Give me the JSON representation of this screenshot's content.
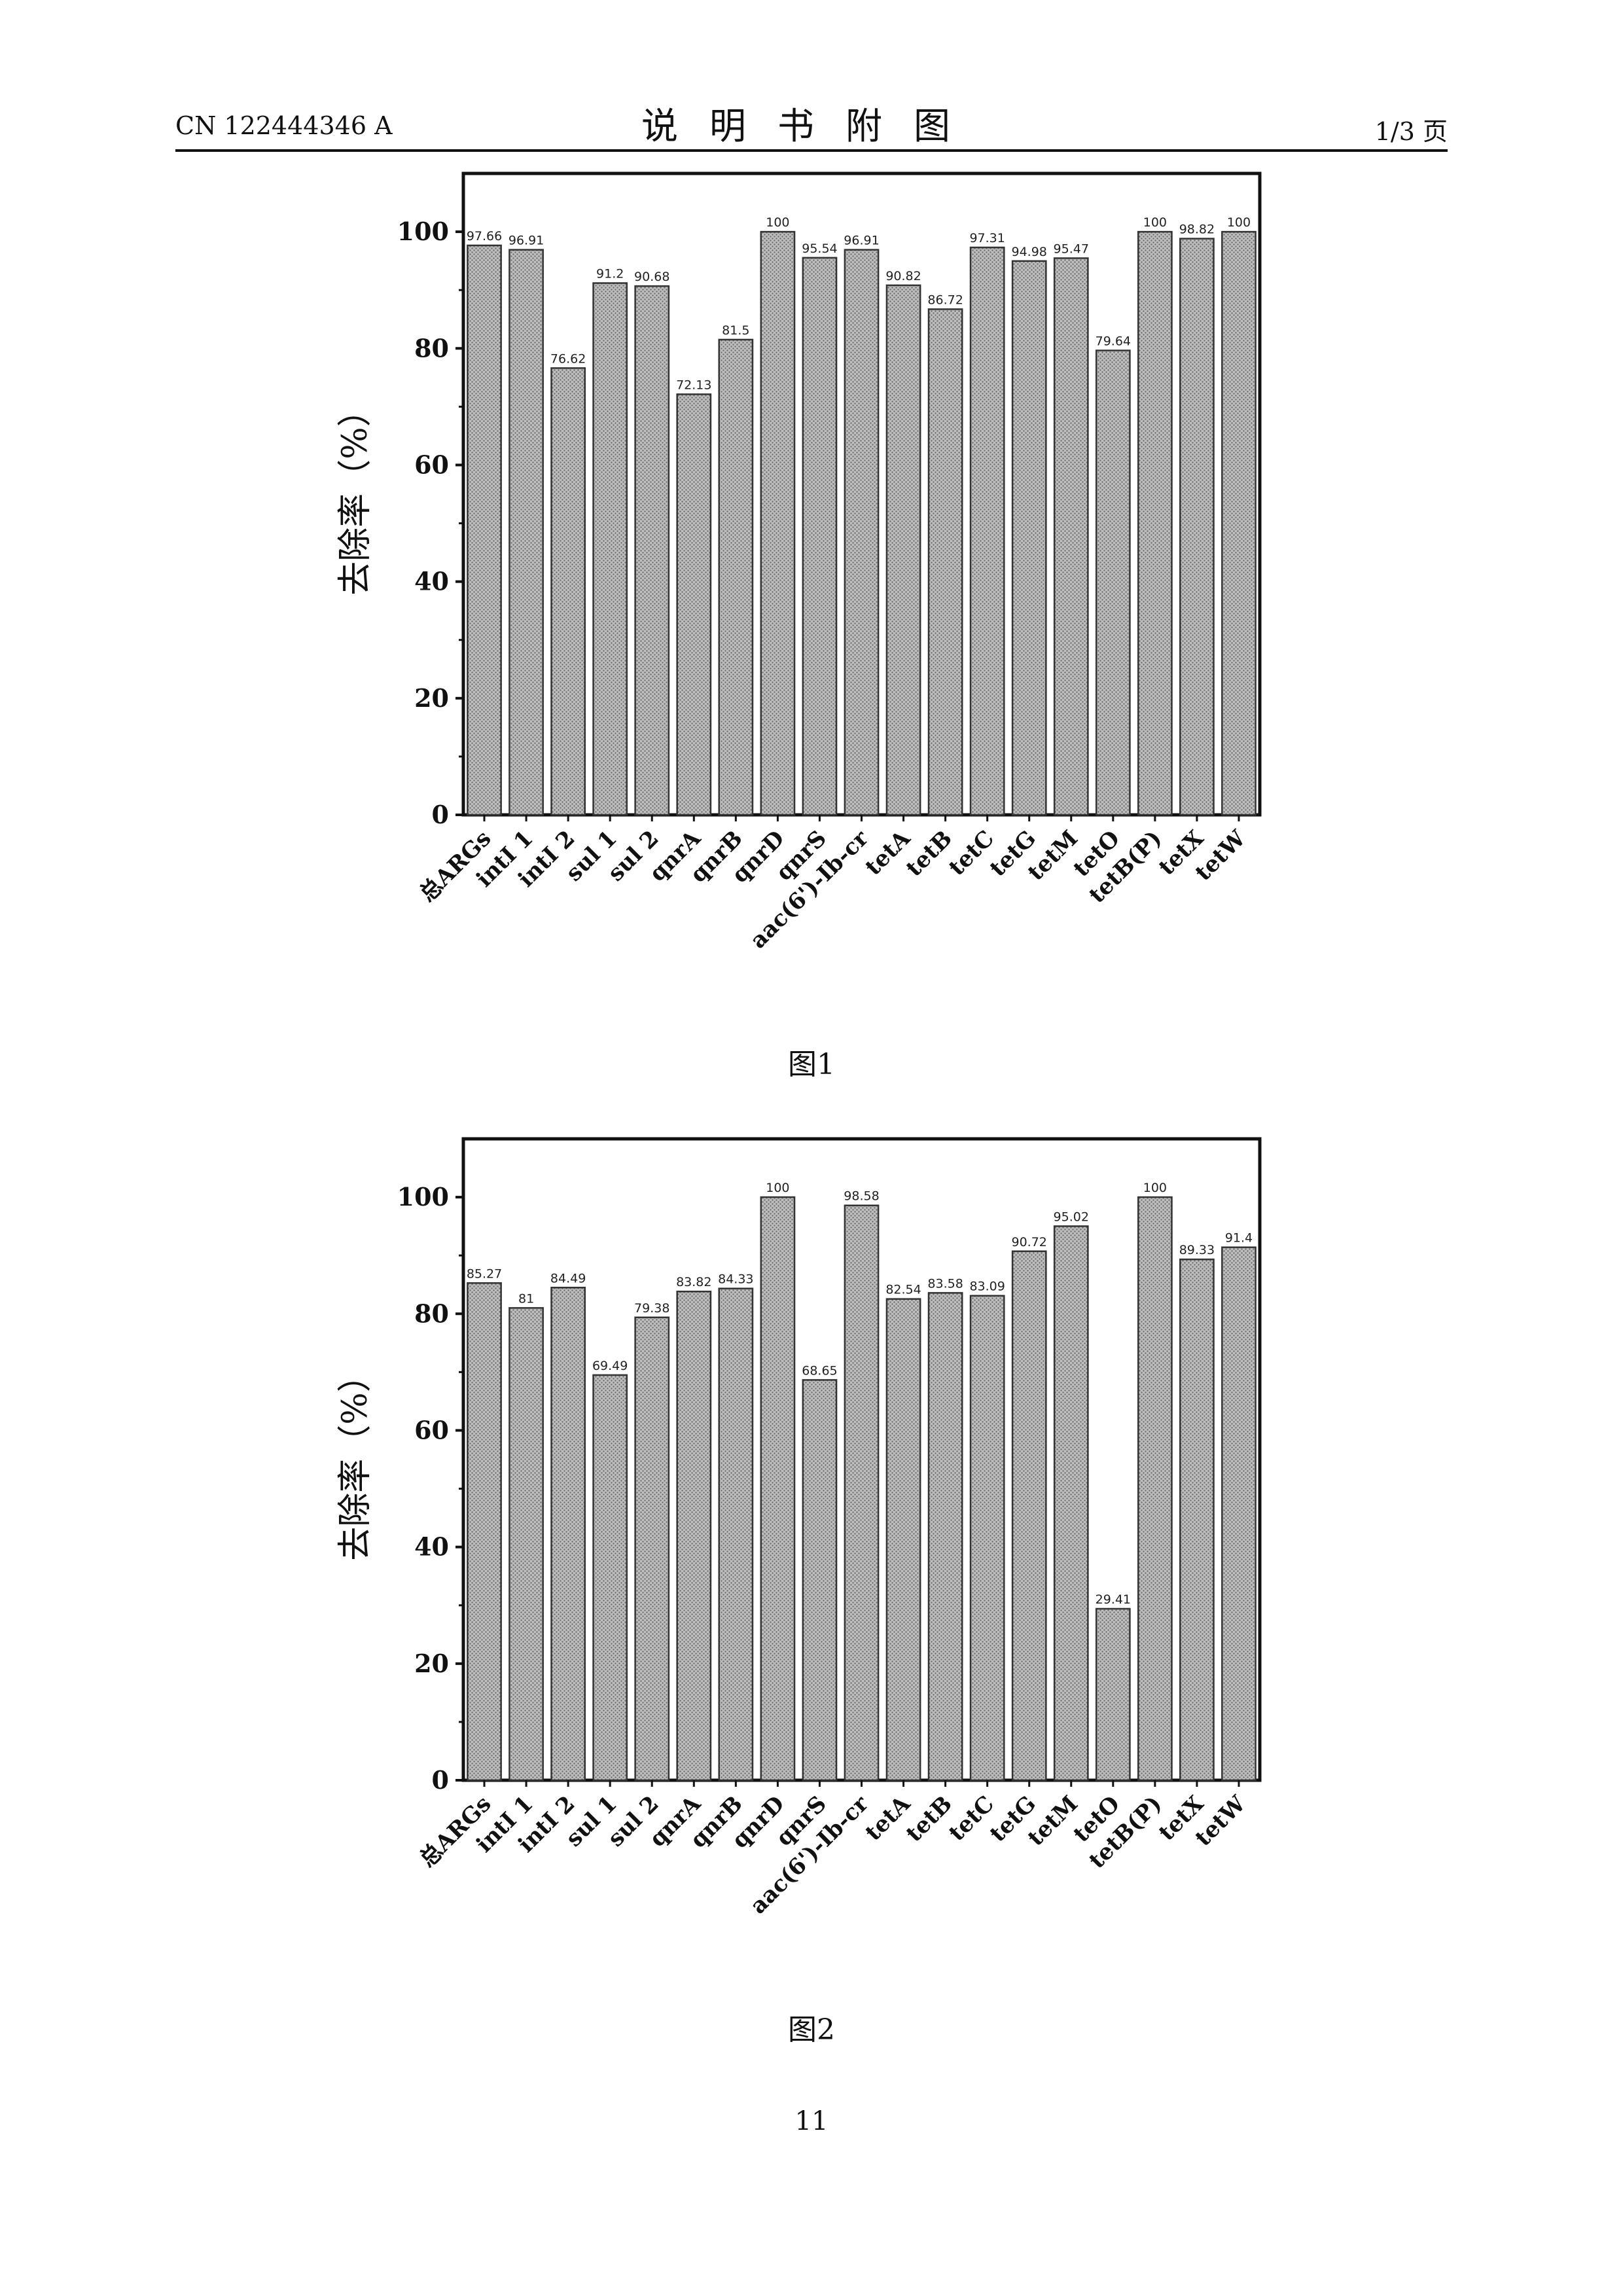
{
  "header": {
    "left": "CN 122444346 A",
    "center": "说明书附图",
    "right": "1/3 页"
  },
  "page_number": "11",
  "colors": {
    "bar_fill": "#bdbdbd",
    "bar_stroke": "#333333",
    "axis": "#111111"
  },
  "chart_data": [
    {
      "type": "bar",
      "caption": "图1",
      "ylabel": "去除率（%）",
      "xlabel": "",
      "ylim": [
        0,
        110
      ],
      "yticks": [
        0,
        20,
        40,
        60,
        80,
        100
      ],
      "grid": false,
      "categories": [
        "总ARGs",
        "intI 1",
        "intI 2",
        "sul 1",
        "sul 2",
        "qnrA",
        "qnrB",
        "qnrD",
        "qnrS",
        "aac(6')-Ib-cr",
        "tetA",
        "tetB",
        "tetC",
        "tetG",
        "tetM",
        "tetO",
        "tetB(P)",
        "tetX",
        "tetW"
      ],
      "values": [
        97.66,
        96.91,
        76.62,
        91.2,
        90.68,
        72.13,
        81.5,
        100,
        95.54,
        96.91,
        90.82,
        86.72,
        97.31,
        94.98,
        95.47,
        79.64,
        100,
        98.82,
        100
      ],
      "value_labels": [
        "97.66",
        "96.91",
        "76.62",
        "91.2",
        "90.68",
        "72.13",
        "81.5",
        "100",
        "95.54",
        "96.91",
        "90.82",
        "86.72",
        "97.31",
        "94.98",
        "95.47",
        "79.64",
        "100",
        "98.82",
        "100"
      ]
    },
    {
      "type": "bar",
      "caption": "图2",
      "ylabel": "去除率（%）",
      "xlabel": "",
      "ylim": [
        0,
        110
      ],
      "yticks": [
        0,
        20,
        40,
        60,
        80,
        100
      ],
      "grid": false,
      "categories": [
        "总ARGs",
        "intI 1",
        "intI 2",
        "sul 1",
        "sul 2",
        "qnrA",
        "qnrB",
        "qnrD",
        "qnrS",
        "aac(6')-Ib-cr",
        "tetA",
        "tetB",
        "tetC",
        "tetG",
        "tetM",
        "tetO",
        "tetB(P)",
        "tetX",
        "tetW"
      ],
      "values": [
        85.27,
        81,
        84.49,
        69.49,
        79.38,
        83.82,
        84.33,
        100,
        68.65,
        98.58,
        82.54,
        83.58,
        83.09,
        90.72,
        95.02,
        29.41,
        100,
        89.33,
        91.4
      ],
      "value_labels": [
        "85.27",
        "81",
        "84.49",
        "69.49",
        "79.38",
        "83.82",
        "84.33",
        "100",
        "68.65",
        "98.58",
        "82.54",
        "83.58",
        "83.09",
        "90.72",
        "95.02",
        "29.41",
        "100",
        "89.33",
        "91.4"
      ]
    }
  ]
}
